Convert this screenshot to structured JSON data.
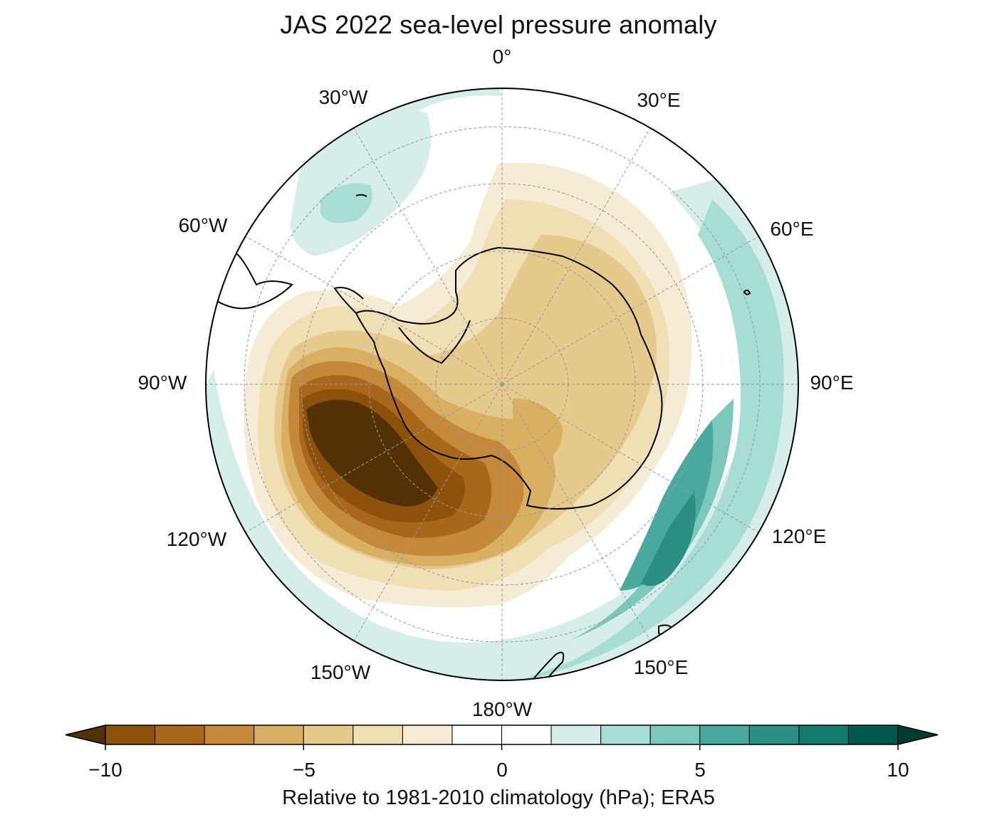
{
  "title": "JAS 2022 sea-level pressure anomaly",
  "map": {
    "projection": "south-polar-stereographic",
    "longitude_labels": {
      "0": "0°",
      "30E": "30°E",
      "60E": "60°E",
      "90E": "90°E",
      "120E": "120°E",
      "150E": "150°E",
      "180": "180°W",
      "150W": "150°W",
      "120W": "120°W",
      "90W": "90°W",
      "60W": "60°W",
      "30W": "30°W"
    },
    "gridlines": "dashed-grey"
  },
  "colorbar": {
    "ticks": [
      "−10",
      "−5",
      "0",
      "5",
      "10"
    ],
    "tick_values": [
      -10,
      -5,
      0,
      5,
      10
    ],
    "range": [
      -10,
      10
    ],
    "extend": "both",
    "levels": 16,
    "colors": [
      "#543005",
      "#8c510a",
      "#a9671c",
      "#c4893b",
      "#d9b062",
      "#e6c98d",
      "#f0deb4",
      "#f6ecd5",
      "#ffffff",
      "#ffffff",
      "#d5eeea",
      "#a8ddd4",
      "#7cc9bc",
      "#4aa99e",
      "#2b8f83",
      "#107a6d",
      "#01574d",
      "#003c30"
    ],
    "caption": "Relative to 1981-2010 climatology (hPa); ERA5"
  }
}
